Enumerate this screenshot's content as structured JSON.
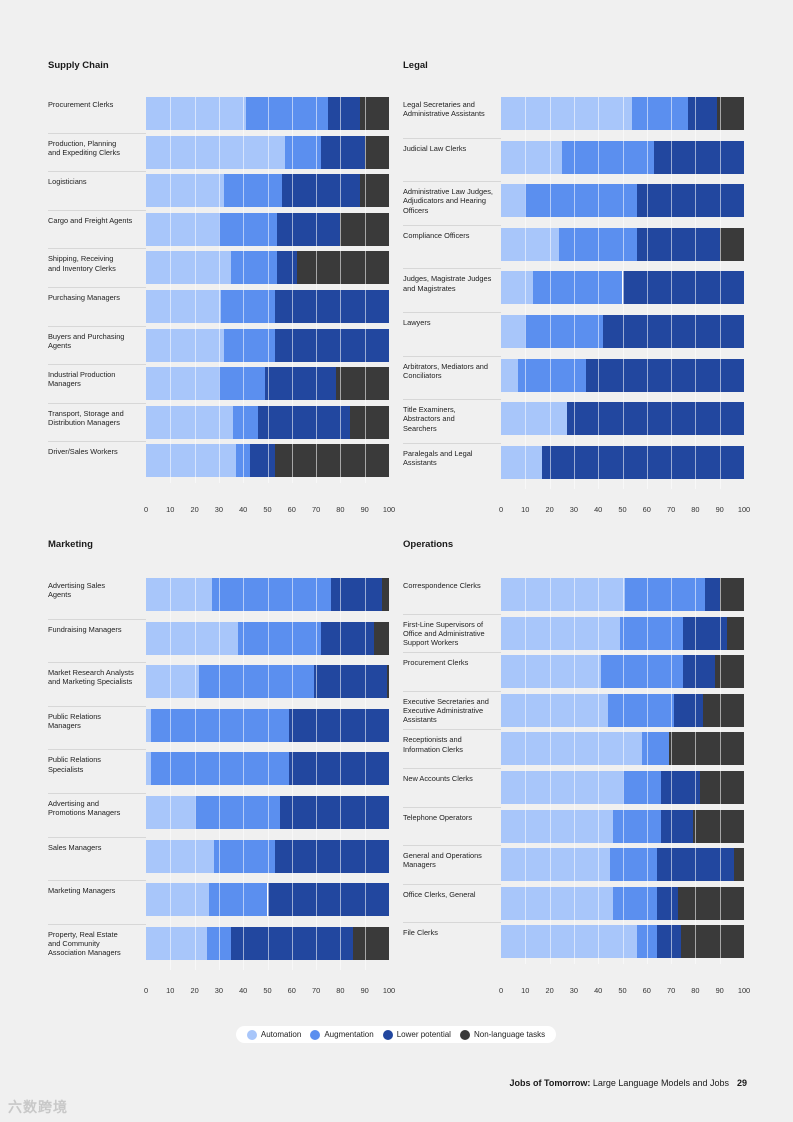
{
  "colors": {
    "automation": "#a8c6fa",
    "augmentation": "#5b8fef",
    "lower_potential": "#22479f",
    "non_language": "#3a3a3a"
  },
  "legend": {
    "items": [
      {
        "label": "Automation",
        "color": "#a8c6fa"
      },
      {
        "label": "Augmentation",
        "color": "#5b8fef"
      },
      {
        "label": "Lower potential",
        "color": "#22479f"
      },
      {
        "label": "Non-language tasks",
        "color": "#3a3a3a"
      }
    ]
  },
  "footer": {
    "title_bold": "Jobs of Tomorrow:",
    "title_rest": " Large Language Models and Jobs",
    "page_number": "29"
  },
  "watermark": "六数跨境",
  "chart_data": [
    {
      "type": "bar",
      "orientation": "horizontal",
      "stacked": true,
      "title": "Supply Chain",
      "xlim": [
        0,
        100
      ],
      "xticks": [
        "0",
        "10",
        "20",
        "30",
        "40",
        "50",
        "60",
        "70",
        "80",
        "90",
        "100"
      ],
      "categories": [
        "Procurement Clerks",
        "Production, Planning\nand Expediting Clerks",
        "Logisticians",
        "Cargo and Freight Agents",
        "Shipping, Receiving\nand Inventory Clerks",
        "Purchasing Managers",
        "Buyers and Purchasing\nAgents",
        "Industrial Production\nManagers",
        "Transport, Storage and\nDistribution Managers",
        "Driver/Sales Workers"
      ],
      "series": [
        {
          "name": "Automation",
          "values": [
            41,
            57,
            32,
            30,
            35,
            31,
            32,
            30,
            36,
            37
          ]
        },
        {
          "name": "Augmentation",
          "values": [
            34,
            15,
            24,
            24,
            19,
            22,
            21,
            19,
            10,
            6
          ]
        },
        {
          "name": "Lower potential",
          "values": [
            13,
            18,
            32,
            26,
            8,
            47,
            47,
            29,
            38,
            10
          ]
        },
        {
          "name": "Non-language tasks",
          "values": [
            12,
            10,
            12,
            20,
            38,
            0,
            0,
            22,
            16,
            47
          ]
        }
      ]
    },
    {
      "type": "bar",
      "orientation": "horizontal",
      "stacked": true,
      "title": "Legal",
      "xlim": [
        0,
        100
      ],
      "xticks": [
        "0",
        "10",
        "20",
        "30",
        "40",
        "50",
        "60",
        "70",
        "80",
        "90",
        "100"
      ],
      "categories": [
        "Legal Secretaries and\nAdministrative Assistants",
        "Judicial Law Clerks",
        "Administrative Law Judges,\nAdjudicators and Hearing\nOfficers",
        "Compliance Officers",
        "Judges, Magistrate Judges\nand Magistrates",
        "Lawyers",
        "Arbitrators, Mediators and\nConciliators",
        "Title Examiners,\nAbstractors and\nSearchers",
        "Paralegals and Legal\nAssistants"
      ],
      "series": [
        {
          "name": "Automation",
          "values": [
            54,
            25,
            10,
            24,
            13,
            10,
            7,
            27,
            17
          ]
        },
        {
          "name": "Augmentation",
          "values": [
            23,
            38,
            46,
            32,
            37,
            32,
            28,
            0,
            0
          ]
        },
        {
          "name": "Lower potential",
          "values": [
            12,
            37,
            44,
            34,
            50,
            58,
            65,
            73,
            83
          ]
        },
        {
          "name": "Non-language tasks",
          "values": [
            11,
            0,
            0,
            10,
            0,
            0,
            0,
            0,
            0
          ]
        }
      ]
    },
    {
      "type": "bar",
      "orientation": "horizontal",
      "stacked": true,
      "title": "Marketing",
      "xlim": [
        0,
        100
      ],
      "xticks": [
        "0",
        "10",
        "20",
        "30",
        "40",
        "50",
        "60",
        "70",
        "80",
        "90",
        "100"
      ],
      "categories": [
        "Advertising Sales\nAgents",
        "Fundraising Managers",
        "Market Research Analysts\nand Marketing Specialists",
        "Public Relations\nManagers",
        "Public Relations\nSpecialists",
        "Advertising and\nPromotions Managers",
        "Sales Managers",
        "Marketing Managers",
        "Property, Real Estate\nand Community\nAssociation Managers"
      ],
      "series": [
        {
          "name": "Automation",
          "values": [
            27,
            38,
            22,
            2,
            2,
            20,
            28,
            26,
            25
          ]
        },
        {
          "name": "Augmentation",
          "values": [
            49,
            34,
            47,
            57,
            57,
            35,
            25,
            24,
            10
          ]
        },
        {
          "name": "Lower potential",
          "values": [
            21,
            22,
            30,
            41,
            41,
            45,
            47,
            50,
            50
          ]
        },
        {
          "name": "Non-language tasks",
          "values": [
            3,
            6,
            1,
            0,
            0,
            0,
            0,
            0,
            15
          ]
        }
      ]
    },
    {
      "type": "bar",
      "orientation": "horizontal",
      "stacked": true,
      "title": "Operations",
      "xlim": [
        0,
        100
      ],
      "xticks": [
        "0",
        "10",
        "20",
        "30",
        "40",
        "50",
        "60",
        "70",
        "80",
        "90",
        "100"
      ],
      "categories": [
        "Correspondence Clerks",
        "First-Line Supervisors of\nOffice and Administrative\nSupport Workers",
        "Procurement Clerks",
        "Executive Secretaries and\nExecutive Administrative\nAssistants",
        "Receptionists and\nInformation Clerks",
        "New Accounts Clerks",
        "Telephone Operators",
        "General and Operations\nManagers",
        "Office Clerks, General",
        "File Clerks"
      ],
      "series": [
        {
          "name": "Automation",
          "values": [
            51,
            49,
            41,
            44,
            58,
            50,
            46,
            45,
            46,
            56
          ]
        },
        {
          "name": "Augmentation",
          "values": [
            33,
            26,
            34,
            27,
            11,
            16,
            20,
            19,
            18,
            8
          ]
        },
        {
          "name": "Lower potential",
          "values": [
            6,
            18,
            13,
            12,
            0,
            16,
            13,
            32,
            9,
            10
          ]
        },
        {
          "name": "Non-language tasks",
          "values": [
            10,
            7,
            12,
            17,
            31,
            18,
            21,
            4,
            27,
            26
          ]
        }
      ]
    }
  ]
}
